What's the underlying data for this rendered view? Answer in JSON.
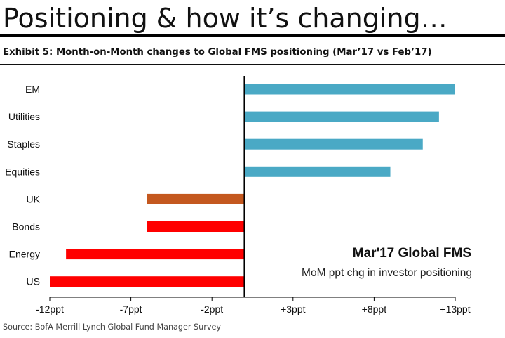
{
  "header": {
    "title": "Positioning & how it’s changing…",
    "exhibit": "Exhibit 5: Month-on-Month changes to Global FMS positioning (Mar’17 vs Feb’17)"
  },
  "footer": {
    "source": "Source: BofA Merrill Lynch Global Fund Manager Survey"
  },
  "colors": {
    "positive": "#4aa9c5",
    "uk": "#c4581f",
    "negative": "#ff0000"
  },
  "chart_data": {
    "type": "bar",
    "orientation": "horizontal",
    "categories": [
      "EM",
      "Utilities",
      "Staples",
      "Equities",
      "UK",
      "Bonds",
      "Energy",
      "US"
    ],
    "values": [
      13,
      12,
      11,
      9,
      -6,
      -6,
      -11,
      -12
    ],
    "bar_colors": [
      "#4aa9c5",
      "#4aa9c5",
      "#4aa9c5",
      "#4aa9c5",
      "#c4581f",
      "#ff0000",
      "#ff0000",
      "#ff0000"
    ],
    "xlim": [
      -12,
      13
    ],
    "x_ticks": [
      -12,
      -7,
      -2,
      3,
      8,
      13
    ],
    "x_tick_labels": [
      "-12ppt",
      "-7ppt",
      "-2ppt",
      "+3ppt",
      "+8ppt",
      "+13ppt"
    ],
    "grid": false,
    "annotation": {
      "title": "Mar'17 Global FMS",
      "subtitle": "MoM ppt chg in investor positioning"
    }
  }
}
